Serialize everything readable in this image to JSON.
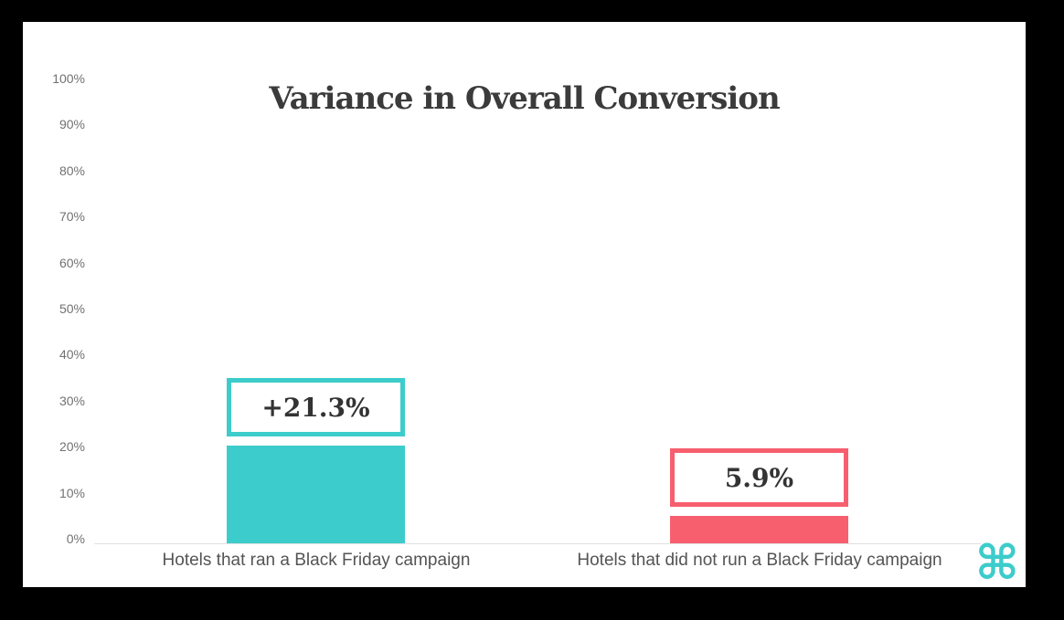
{
  "frame": {
    "background_color": "#000000",
    "card_color": "#ffffff"
  },
  "chart_data": {
    "type": "bar",
    "title": "Variance in Overall Conversion",
    "categories": [
      "Hotels that ran a Black Friday campaign",
      "Hotels that did not run a Black Friday campaign"
    ],
    "values": [
      21.3,
      5.9
    ],
    "value_labels": [
      "+21.3%",
      "5.9%"
    ],
    "bar_colors": [
      "#3ccccb",
      "#f75f6e"
    ],
    "xlabel": "",
    "ylabel": "",
    "ylim": [
      0,
      100
    ],
    "yticks": [
      "100%",
      "90%",
      "80%",
      "70%",
      "60%",
      "50%",
      "40%",
      "30%",
      "20%",
      "10%",
      "0%"
    ],
    "grid": false,
    "legend": "none",
    "axis_line_color": "#e0e0e0",
    "title_color": "#3b3b3b",
    "tick_color": "#717171",
    "category_label_color": "#545454"
  },
  "branding": {
    "logo_icon": "command-symbol-icon",
    "logo_glyph": "⌘",
    "logo_color": "#3ccccb"
  }
}
